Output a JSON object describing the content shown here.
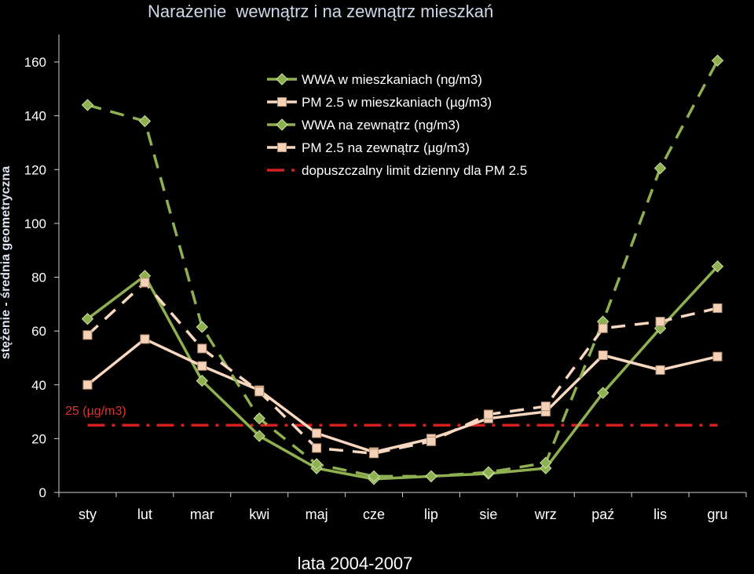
{
  "chart_data": {
    "type": "line",
    "title": "Narażenie  wewnątrz i na zewnątrz mieszkań",
    "ylabel": "stężenie - średnia geometryczna",
    "xlabel": "lata 2004-2007",
    "categories": [
      "sty",
      "lut",
      "mar",
      "kwi",
      "maj",
      "cze",
      "lip",
      "sie",
      "wrz",
      "paź",
      "lis",
      "gru"
    ],
    "ylim": [
      0,
      160
    ],
    "yticks": [
      "0",
      "20",
      "40",
      "60",
      "80",
      "100",
      "120",
      "140",
      "160"
    ],
    "legend_position": "top-center",
    "series": [
      {
        "name": "WWA w mieszkaniach (ng/m3)",
        "values": [
          64.5,
          80.5,
          41.5,
          21,
          9,
          5,
          6,
          7,
          9,
          37,
          61,
          84
        ],
        "color": "#8fb050",
        "marker": "diamond",
        "dash": "solid"
      },
      {
        "name": "PM 2.5 w mieszkaniach (µg/m3)",
        "values": [
          40,
          57,
          47,
          38,
          22,
          15,
          20,
          27.5,
          30,
          51,
          45.5,
          50.5
        ],
        "color": "#f8d8c0",
        "marker": "square",
        "dash": "solid"
      },
      {
        "name": "WWA na zewnątrz (ng/m3)",
        "values": [
          144,
          138,
          61.5,
          27.5,
          10.5,
          6,
          6,
          7.5,
          11,
          63.5,
          120.5,
          160.5
        ],
        "color": "#8fb050",
        "marker": "diamond",
        "dash": "dashed"
      },
      {
        "name": "PM 2.5 na zewnątrz (µg/m3)",
        "values": [
          58.5,
          78,
          53.5,
          37.5,
          16.5,
          14.5,
          19,
          29,
          32,
          61,
          63.5,
          68.5
        ],
        "color": "#f8d8c0",
        "marker": "square",
        "dash": "dashed"
      },
      {
        "name": "dopuszczalny limit dzienny dla PM 2.5",
        "values": [
          25,
          25,
          25,
          25,
          25,
          25,
          25,
          25,
          25,
          25,
          25,
          25
        ],
        "color": "#d42020",
        "marker": "none",
        "dash": "dashdot"
      }
    ],
    "annotations": [
      {
        "text": "25 (µg/m3)",
        "y": 25
      }
    ]
  }
}
